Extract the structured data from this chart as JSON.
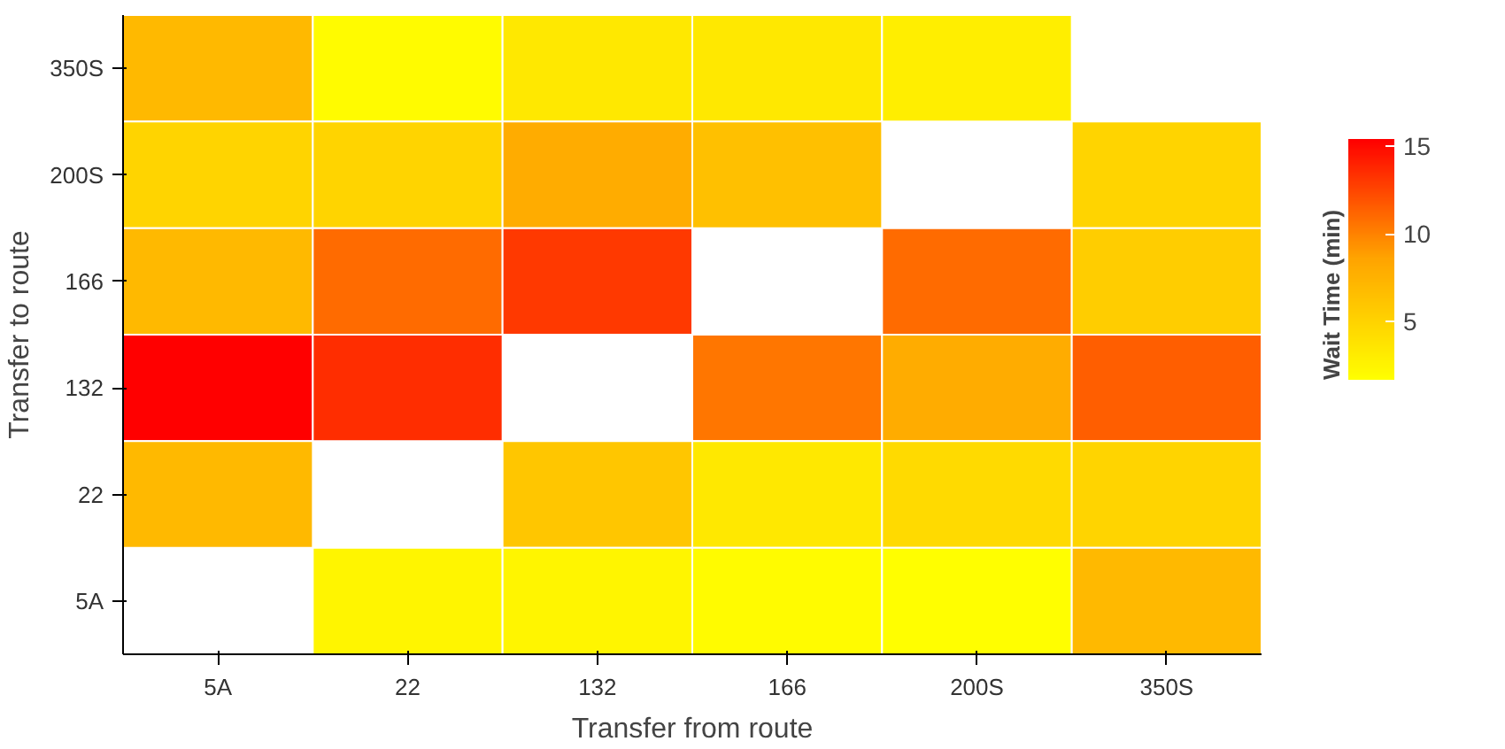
{
  "chart_data": {
    "type": "heatmap",
    "xlabel": "Transfer from route",
    "ylabel": "Transfer to route",
    "clabel": "Wait Time (min)",
    "categories": [
      "5A",
      "22",
      "132",
      "166",
      "200S",
      "350S"
    ],
    "y_categories": [
      "350S",
      "200S",
      "166",
      "132",
      "22",
      "5A"
    ],
    "cells": [
      [
        7,
        2,
        3.5,
        3.5,
        3,
        null
      ],
      [
        5,
        5,
        8,
        6.5,
        null,
        5
      ],
      [
        7,
        11,
        13,
        null,
        11,
        5.5
      ],
      [
        15.4,
        13.5,
        null,
        10.5,
        8,
        11.5
      ],
      [
        7,
        null,
        6,
        3.5,
        4.5,
        5
      ],
      [
        null,
        2.5,
        2.5,
        2,
        1.8,
        7
      ]
    ],
    "clim": [
      1.7,
      15.4
    ],
    "cticks": [
      5,
      10,
      15
    ]
  }
}
